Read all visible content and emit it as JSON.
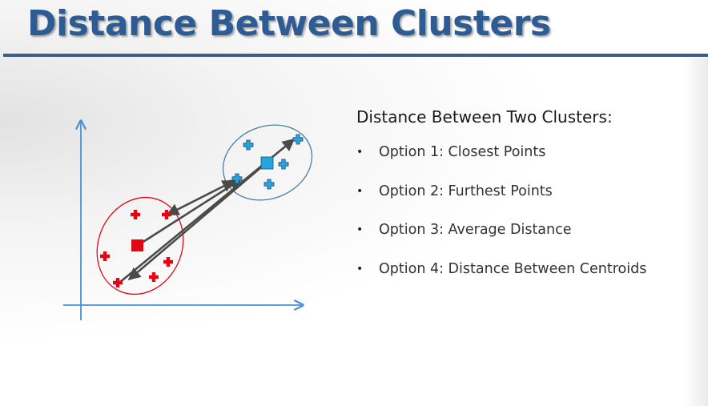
{
  "title": "Distance Between Clusters",
  "panel": {
    "heading": "Distance Between Two Clusters:",
    "bullet_glyph": "•",
    "options": [
      "Option 1: Closest Points",
      "Option 2: Furthest Points",
      "Option 3: Average Distance",
      "Option 4: Distance Between Centroids"
    ]
  },
  "colors": {
    "title": "#2d5b94",
    "title_rule": "#3d5c86",
    "axis": "#4a90d9",
    "red_cluster": "#e30613",
    "blue_cluster_fill": "#29a3dd",
    "blue_cluster_outline": "#4b7f9e",
    "arrow": "#4a4a4a"
  }
}
